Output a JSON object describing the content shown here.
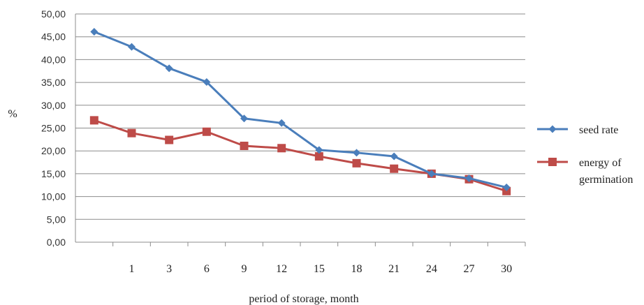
{
  "chart_data": {
    "type": "line",
    "title": "",
    "xlabel": "period of storage, month",
    "ylabel": "%",
    "ylim": [
      0,
      50
    ],
    "y_ticks": [
      "0,00",
      "5,00",
      "10,00",
      "15,00",
      "20,00",
      "25,00",
      "30,00",
      "35,00",
      "40,00",
      "45,00",
      "50,00"
    ],
    "categories": [
      "",
      "1",
      "3",
      "6",
      "9",
      "12",
      "15",
      "18",
      "21",
      "24",
      "27",
      "30"
    ],
    "grid": "horizontal",
    "legend": "right",
    "series": [
      {
        "name": "seed rate",
        "color": "#4a7ebb",
        "marker": "diamond",
        "values": [
          46.1,
          42.8,
          38.1,
          35.1,
          27.1,
          26.1,
          20.2,
          19.6,
          18.8,
          15.0,
          14.0,
          12.0
        ]
      },
      {
        "name": "energy of germination",
        "legend_lines": [
          "energy of",
          "germination"
        ],
        "color": "#be4b48",
        "marker": "square",
        "values": [
          26.7,
          23.9,
          22.4,
          24.2,
          21.1,
          20.6,
          18.8,
          17.3,
          16.1,
          15.0,
          13.8,
          11.2
        ]
      }
    ]
  }
}
